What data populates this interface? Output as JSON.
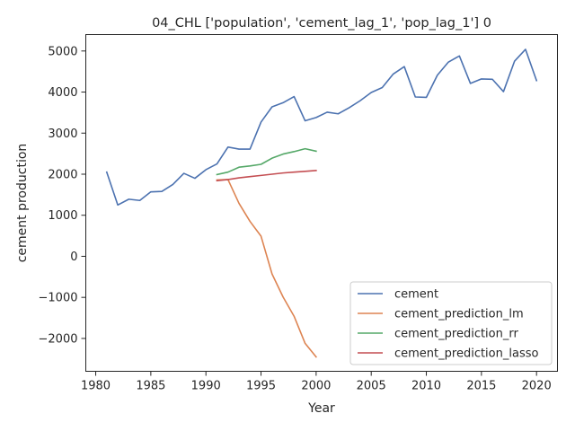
{
  "chart_data": {
    "type": "line",
    "title": "04_CHL ['population', 'cement_lag_1', 'pop_lag_1'] 0",
    "xlabel": "Year",
    "ylabel": "cement production",
    "xlim": [
      1979.1,
      2021.9
    ],
    "ylim": [
      -2800,
      5400
    ],
    "xticks": [
      1980,
      1985,
      1990,
      1995,
      2000,
      2005,
      2010,
      2015,
      2020
    ],
    "yticks": [
      -2000,
      -1000,
      0,
      1000,
      2000,
      3000,
      4000,
      5000
    ],
    "ytick_labels": [
      "−2000",
      "−1000",
      "0",
      "1000",
      "2000",
      "3000",
      "4000",
      "5000"
    ],
    "grid": false,
    "legend_position": "lower right",
    "series": [
      {
        "name": "cement",
        "color": "#4c72b0",
        "x": [
          1981,
          1982,
          1983,
          1984,
          1985,
          1986,
          1987,
          1988,
          1989,
          1990,
          1991,
          1992,
          1993,
          1994,
          1995,
          1996,
          1997,
          1998,
          1999,
          2000,
          2001,
          2002,
          2003,
          2004,
          2005,
          2006,
          2007,
          2008,
          2009,
          2010,
          2011,
          2012,
          2013,
          2014,
          2015,
          2016,
          2017,
          2018,
          2019,
          2020
        ],
        "y": [
          2050,
          1250,
          1390,
          1360,
          1570,
          1580,
          1750,
          2020,
          1900,
          2110,
          2250,
          2660,
          2610,
          2610,
          3270,
          3640,
          3740,
          3890,
          3300,
          3380,
          3510,
          3470,
          3620,
          3790,
          3990,
          4110,
          4440,
          4620,
          3880,
          3870,
          4410,
          4730,
          4880,
          4210,
          4320,
          4310,
          4010,
          4750,
          5040,
          4280
        ]
      },
      {
        "name": "cement_prediction_lm",
        "color": "#dd8452",
        "x": [
          1991,
          1992,
          1993,
          1994,
          1995,
          1996,
          1997,
          1998,
          1999,
          2000
        ],
        "y": [
          1860,
          1870,
          1290,
          850,
          490,
          -430,
          -990,
          -1460,
          -2120,
          -2450
        ]
      },
      {
        "name": "cement_prediction_rr",
        "color": "#55a868",
        "x": [
          1991,
          1992,
          1993,
          1994,
          1995,
          1996,
          1997,
          1998,
          1999,
          2000
        ],
        "y": [
          1990,
          2050,
          2170,
          2200,
          2240,
          2390,
          2490,
          2550,
          2620,
          2560
        ]
      },
      {
        "name": "cement_prediction_lasso",
        "color": "#c44e52",
        "x": [
          1991,
          1992,
          1993,
          1994,
          1995,
          1996,
          1997,
          1998,
          1999,
          2000
        ],
        "y": [
          1840,
          1870,
          1910,
          1940,
          1970,
          2000,
          2030,
          2050,
          2070,
          2090
        ]
      }
    ]
  }
}
